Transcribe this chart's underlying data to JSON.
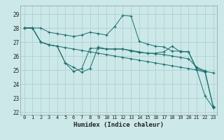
{
  "title": "",
  "xlabel": "Humidex (Indice chaleur)",
  "bg_color": "#cce8e8",
  "grid_color": "#aacece",
  "line_color": "#1a6e6e",
  "xlim": [
    -0.5,
    23.5
  ],
  "ylim": [
    21.8,
    29.6
  ],
  "yticks": [
    22,
    23,
    24,
    25,
    26,
    27,
    28,
    29
  ],
  "xticks": [
    0,
    1,
    2,
    3,
    4,
    5,
    6,
    7,
    8,
    9,
    10,
    11,
    12,
    13,
    14,
    15,
    16,
    17,
    18,
    19,
    20,
    21,
    22,
    23
  ],
  "series": [
    [
      28.0,
      28.0,
      28.0,
      27.7,
      27.6,
      27.5,
      27.4,
      27.5,
      27.7,
      27.6,
      27.5,
      28.1,
      28.9,
      28.85,
      27.05,
      26.85,
      26.7,
      26.65,
      26.35,
      26.35,
      26.3,
      25.1,
      24.9,
      24.8
    ],
    [
      28.0,
      28.0,
      27.0,
      26.8,
      26.7,
      25.5,
      24.9,
      25.1,
      26.55,
      26.55,
      26.5,
      26.5,
      26.5,
      26.4,
      26.3,
      26.2,
      26.15,
      26.1,
      26.0,
      25.9,
      25.8,
      25.2,
      24.95,
      22.4
    ],
    [
      28.0,
      28.0,
      27.0,
      26.8,
      26.7,
      25.5,
      25.2,
      24.85,
      25.1,
      26.65,
      26.5,
      26.5,
      26.5,
      26.35,
      26.25,
      26.2,
      26.2,
      26.3,
      26.7,
      26.3,
      26.3,
      25.0,
      24.85,
      22.35
    ],
    [
      28.0,
      28.0,
      27.0,
      26.8,
      26.7,
      26.6,
      26.5,
      26.4,
      26.3,
      26.2,
      26.1,
      26.0,
      25.9,
      25.8,
      25.7,
      25.6,
      25.5,
      25.4,
      25.3,
      25.2,
      25.1,
      25.0,
      23.15,
      22.3
    ]
  ]
}
